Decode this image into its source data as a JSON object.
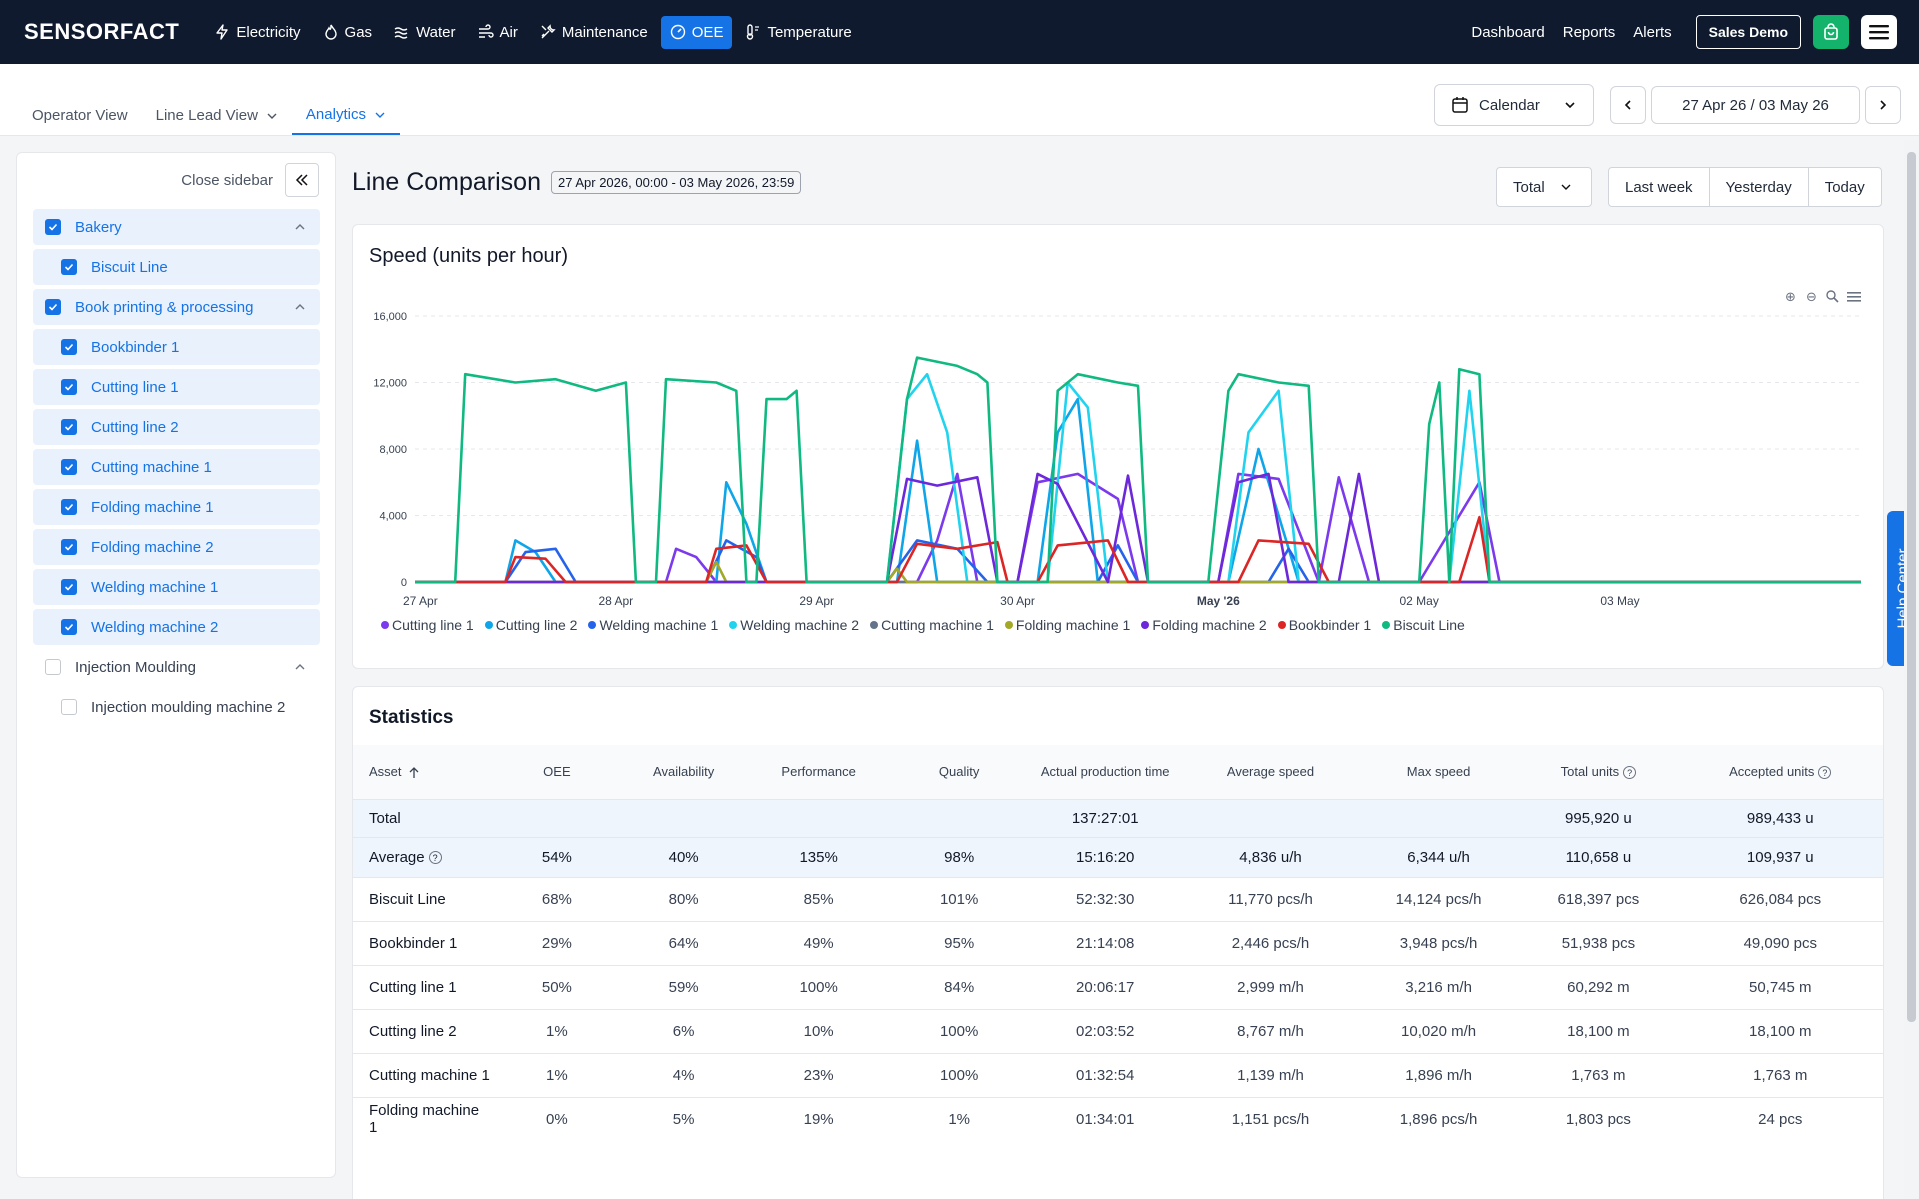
{
  "brand": {
    "logo": "SENSORFACT"
  },
  "nav": {
    "items": [
      {
        "label": "Electricity",
        "icon": "bolt-icon",
        "active": false
      },
      {
        "label": "Gas",
        "icon": "flame-icon",
        "active": false
      },
      {
        "label": "Water",
        "icon": "water-icon",
        "active": false
      },
      {
        "label": "Air",
        "icon": "wind-icon",
        "active": false
      },
      {
        "label": "Maintenance",
        "icon": "wrench-icon",
        "active": false
      },
      {
        "label": "OEE",
        "icon": "gauge-icon",
        "active": true
      },
      {
        "label": "Temperature",
        "icon": "thermometer-icon",
        "active": false
      }
    ],
    "right": {
      "dashboard": "Dashboard",
      "reports": "Reports",
      "alerts": "Alerts",
      "sales_demo": "Sales Demo"
    }
  },
  "subnav": {
    "tabs": [
      {
        "label": "Operator View",
        "active": false,
        "dropdown": false
      },
      {
        "label": "Line Lead View",
        "active": false,
        "dropdown": true
      },
      {
        "label": "Analytics",
        "active": true,
        "dropdown": true
      }
    ],
    "calendar_label": "Calendar",
    "date_range": "27 Apr 26 / 03 May 26"
  },
  "sidebar": {
    "close_label": "Close sidebar",
    "items": [
      {
        "label": "Bakery",
        "level": "group",
        "checked": true,
        "expanded": true
      },
      {
        "label": "Biscuit Line",
        "level": "child",
        "checked": true
      },
      {
        "label": "Book printing & processing",
        "level": "group",
        "checked": true,
        "expanded": true
      },
      {
        "label": "Bookbinder 1",
        "level": "child",
        "checked": true
      },
      {
        "label": "Cutting line 1",
        "level": "child",
        "checked": true
      },
      {
        "label": "Cutting line 2",
        "level": "child",
        "checked": true
      },
      {
        "label": "Cutting machine 1",
        "level": "child",
        "checked": true
      },
      {
        "label": "Folding machine 1",
        "level": "child",
        "checked": true
      },
      {
        "label": "Folding machine 2",
        "level": "child",
        "checked": true
      },
      {
        "label": "Welding machine 1",
        "level": "child",
        "checked": true
      },
      {
        "label": "Welding machine 2",
        "level": "child",
        "checked": true
      },
      {
        "label": "Injection Moulding",
        "level": "group",
        "checked": false,
        "expanded": true
      },
      {
        "label": "Injection moulding machine 2",
        "level": "child",
        "checked": false
      }
    ]
  },
  "main": {
    "title": "Line Comparison",
    "date_chip": "27 Apr 2026, 00:00 - 03 May 2026, 23:59",
    "total_dropdown": "Total",
    "quick_ranges": [
      "Last week",
      "Yesterday",
      "Today"
    ]
  },
  "chart_data": {
    "type": "line",
    "title": "Speed (units per hour)",
    "x_ticks": [
      "27 Apr",
      "28 Apr",
      "29 Apr",
      "30 Apr",
      "May '26",
      "02 May",
      "03 May"
    ],
    "y_ticks": [
      "0",
      "4,000",
      "8,000",
      "12,000",
      "16,000"
    ],
    "ylim": [
      0,
      16000
    ],
    "xlim_days": [
      0,
      7.2
    ],
    "grid": true,
    "legend_position": "bottom-left",
    "series": [
      {
        "name": "Cutting line 1",
        "color": "#7c3aed",
        "points": [
          [
            0,
            0
          ],
          [
            1.25,
            0
          ],
          [
            1.3,
            2000
          ],
          [
            1.4,
            1500
          ],
          [
            1.5,
            0
          ],
          [
            2.5,
            0
          ],
          [
            2.6,
            2500
          ],
          [
            2.7,
            6500
          ],
          [
            2.8,
            0
          ],
          [
            3.0,
            0
          ],
          [
            3.1,
            6000
          ],
          [
            3.3,
            6500
          ],
          [
            3.5,
            5000
          ],
          [
            3.6,
            0
          ],
          [
            4.0,
            0
          ],
          [
            4.1,
            6500
          ],
          [
            4.3,
            6200
          ],
          [
            4.5,
            0
          ],
          [
            4.6,
            6300
          ],
          [
            4.75,
            0
          ],
          [
            5.0,
            0
          ],
          [
            5.3,
            6000
          ],
          [
            5.4,
            0
          ],
          [
            7.2,
            0
          ]
        ]
      },
      {
        "name": "Cutting line 2",
        "color": "#0ea5e9",
        "points": [
          [
            0,
            0
          ],
          [
            0.45,
            0
          ],
          [
            0.5,
            2500
          ],
          [
            0.6,
            1800
          ],
          [
            0.7,
            0
          ],
          [
            1.5,
            0
          ],
          [
            1.55,
            6000
          ],
          [
            1.65,
            3500
          ],
          [
            1.75,
            0
          ],
          [
            2.4,
            0
          ],
          [
            2.5,
            8500
          ],
          [
            2.6,
            0
          ],
          [
            3.1,
            0
          ],
          [
            3.2,
            9000
          ],
          [
            3.3,
            11000
          ],
          [
            3.4,
            0
          ],
          [
            4.05,
            0
          ],
          [
            4.2,
            8000
          ],
          [
            4.4,
            0
          ],
          [
            7.2,
            0
          ]
        ]
      },
      {
        "name": "Welding machine 1",
        "color": "#2563eb",
        "points": [
          [
            0,
            0
          ],
          [
            0.45,
            0
          ],
          [
            0.55,
            1800
          ],
          [
            0.7,
            2000
          ],
          [
            0.8,
            0
          ],
          [
            1.45,
            0
          ],
          [
            1.55,
            2500
          ],
          [
            1.7,
            1500
          ],
          [
            1.75,
            0
          ],
          [
            2.35,
            0
          ],
          [
            2.5,
            2500
          ],
          [
            2.7,
            2000
          ],
          [
            2.85,
            0
          ],
          [
            3.4,
            0
          ],
          [
            3.5,
            2200
          ],
          [
            3.6,
            0
          ],
          [
            4.25,
            0
          ],
          [
            4.35,
            2000
          ],
          [
            4.45,
            0
          ],
          [
            7.2,
            0
          ]
        ]
      },
      {
        "name": "Welding machine 2",
        "color": "#22d3ee",
        "points": [
          [
            0,
            0
          ],
          [
            2.35,
            0
          ],
          [
            2.45,
            11000
          ],
          [
            2.55,
            12500
          ],
          [
            2.65,
            9000
          ],
          [
            2.75,
            0
          ],
          [
            3.15,
            0
          ],
          [
            3.25,
            12000
          ],
          [
            3.35,
            10500
          ],
          [
            3.45,
            0
          ],
          [
            4.05,
            0
          ],
          [
            4.15,
            9000
          ],
          [
            4.3,
            11500
          ],
          [
            4.4,
            0
          ],
          [
            5.15,
            0
          ],
          [
            5.25,
            11500
          ],
          [
            5.35,
            0
          ],
          [
            7.2,
            0
          ]
        ]
      },
      {
        "name": "Cutting machine 1",
        "color": "#64748b",
        "points": [
          [
            0,
            0
          ],
          [
            7.2,
            0
          ]
        ]
      },
      {
        "name": "Folding machine 1",
        "color": "#a3a826",
        "points": [
          [
            0,
            0
          ],
          [
            1.45,
            0
          ],
          [
            1.5,
            1200
          ],
          [
            1.55,
            0
          ],
          [
            2.35,
            0
          ],
          [
            2.4,
            800
          ],
          [
            2.45,
            0
          ],
          [
            7.2,
            0
          ]
        ]
      },
      {
        "name": "Folding machine 2",
        "color": "#6d28d9",
        "points": [
          [
            0,
            0
          ],
          [
            2.35,
            0
          ],
          [
            2.45,
            6200
          ],
          [
            2.6,
            5800
          ],
          [
            2.8,
            6300
          ],
          [
            2.9,
            0
          ],
          [
            3.0,
            0
          ],
          [
            3.1,
            6500
          ],
          [
            3.2,
            5900
          ],
          [
            3.45,
            0
          ],
          [
            3.55,
            6400
          ],
          [
            3.65,
            0
          ],
          [
            4.0,
            0
          ],
          [
            4.1,
            6000
          ],
          [
            4.25,
            6500
          ],
          [
            4.35,
            0
          ],
          [
            4.6,
            0
          ],
          [
            4.7,
            6500
          ],
          [
            4.8,
            0
          ],
          [
            7.2,
            0
          ]
        ]
      },
      {
        "name": "Bookbinder 1",
        "color": "#dc2626",
        "points": [
          [
            0,
            0
          ],
          [
            0.45,
            0
          ],
          [
            0.5,
            1500
          ],
          [
            0.65,
            1400
          ],
          [
            0.75,
            0
          ],
          [
            1.45,
            0
          ],
          [
            1.5,
            2000
          ],
          [
            1.65,
            2200
          ],
          [
            1.75,
            0
          ],
          [
            2.4,
            0
          ],
          [
            2.5,
            2300
          ],
          [
            2.7,
            2000
          ],
          [
            2.9,
            2400
          ],
          [
            2.95,
            0
          ],
          [
            3.1,
            0
          ],
          [
            3.2,
            2200
          ],
          [
            3.45,
            2500
          ],
          [
            3.55,
            0
          ],
          [
            4.1,
            0
          ],
          [
            4.2,
            2500
          ],
          [
            4.45,
            2300
          ],
          [
            4.55,
            0
          ],
          [
            5.2,
            0
          ],
          [
            5.3,
            3900
          ],
          [
            5.35,
            0
          ],
          [
            7.2,
            0
          ]
        ]
      },
      {
        "name": "Biscuit Line",
        "color": "#10b981",
        "points": [
          [
            0,
            0
          ],
          [
            0.2,
            0
          ],
          [
            0.25,
            12500
          ],
          [
            0.5,
            12000
          ],
          [
            0.7,
            12200
          ],
          [
            0.9,
            11500
          ],
          [
            1.05,
            12000
          ],
          [
            1.1,
            0
          ],
          [
            1.2,
            0
          ],
          [
            1.25,
            12200
          ],
          [
            1.5,
            12000
          ],
          [
            1.6,
            11500
          ],
          [
            1.65,
            0
          ],
          [
            1.7,
            0
          ],
          [
            1.75,
            11000
          ],
          [
            1.85,
            11000
          ],
          [
            1.9,
            11500
          ],
          [
            1.95,
            0
          ],
          [
            2.35,
            0
          ],
          [
            2.45,
            11000
          ],
          [
            2.5,
            13500
          ],
          [
            2.7,
            13000
          ],
          [
            2.8,
            12500
          ],
          [
            2.85,
            12000
          ],
          [
            2.9,
            0
          ],
          [
            3.15,
            0
          ],
          [
            3.2,
            11500
          ],
          [
            3.3,
            12500
          ],
          [
            3.5,
            12000
          ],
          [
            3.6,
            11800
          ],
          [
            3.65,
            0
          ],
          [
            3.95,
            0
          ],
          [
            4.05,
            11500
          ],
          [
            4.1,
            12500
          ],
          [
            4.3,
            12000
          ],
          [
            4.45,
            11800
          ],
          [
            4.5,
            0
          ],
          [
            5.0,
            0
          ],
          [
            5.05,
            9500
          ],
          [
            5.1,
            12000
          ],
          [
            5.15,
            0
          ],
          [
            5.2,
            12800
          ],
          [
            5.3,
            12500
          ],
          [
            5.35,
            0
          ],
          [
            7.2,
            0
          ]
        ]
      }
    ]
  },
  "stats": {
    "title": "Statistics",
    "columns": [
      "Asset",
      "OEE",
      "Availability",
      "Performance",
      "Quality",
      "Actual production time",
      "Average speed",
      "Max speed",
      "Total units",
      "Accepted units"
    ],
    "total_row": {
      "asset": "Total",
      "oee": "",
      "availability": "",
      "performance": "",
      "quality": "",
      "time": "137:27:01",
      "avg_speed": "",
      "max_speed": "",
      "total_units": "995,920 u",
      "accepted_units": "989,433 u"
    },
    "average_row": {
      "asset": "Average",
      "oee": "54%",
      "availability": "40%",
      "performance": "135%",
      "quality": "98%",
      "time": "15:16:20",
      "avg_speed": "4,836 u/h",
      "max_speed": "6,344 u/h",
      "total_units": "110,658 u",
      "accepted_units": "109,937 u"
    },
    "rows": [
      {
        "asset": "Biscuit Line",
        "oee": "68%",
        "availability": "80%",
        "performance": "85%",
        "quality": "101%",
        "time": "52:32:30",
        "avg_speed": "11,770 pcs/h",
        "max_speed": "14,124 pcs/h",
        "total_units": "618,397 pcs",
        "accepted_units": "626,084 pcs"
      },
      {
        "asset": "Bookbinder 1",
        "oee": "29%",
        "availability": "64%",
        "performance": "49%",
        "quality": "95%",
        "time": "21:14:08",
        "avg_speed": "2,446 pcs/h",
        "max_speed": "3,948 pcs/h",
        "total_units": "51,938 pcs",
        "accepted_units": "49,090 pcs"
      },
      {
        "asset": "Cutting line 1",
        "oee": "50%",
        "availability": "59%",
        "performance": "100%",
        "quality": "84%",
        "time": "20:06:17",
        "avg_speed": "2,999 m/h",
        "max_speed": "3,216 m/h",
        "total_units": "60,292 m",
        "accepted_units": "50,745 m"
      },
      {
        "asset": "Cutting line 2",
        "oee": "1%",
        "availability": "6%",
        "performance": "10%",
        "quality": "100%",
        "time": "02:03:52",
        "avg_speed": "8,767 m/h",
        "max_speed": "10,020 m/h",
        "total_units": "18,100 m",
        "accepted_units": "18,100 m"
      },
      {
        "asset": "Cutting machine 1",
        "oee": "1%",
        "availability": "4%",
        "performance": "23%",
        "quality": "100%",
        "time": "01:32:54",
        "avg_speed": "1,139 m/h",
        "max_speed": "1,896 m/h",
        "total_units": "1,763 m",
        "accepted_units": "1,763 m"
      },
      {
        "asset": "Folding machine 1",
        "oee": "0%",
        "availability": "5%",
        "performance": "19%",
        "quality": "1%",
        "time": "01:34:01",
        "avg_speed": "1,151 pcs/h",
        "max_speed": "1,896 pcs/h",
        "total_units": "1,803 pcs",
        "accepted_units": "24 pcs"
      }
    ]
  },
  "help_center": {
    "label": "Help Center"
  }
}
